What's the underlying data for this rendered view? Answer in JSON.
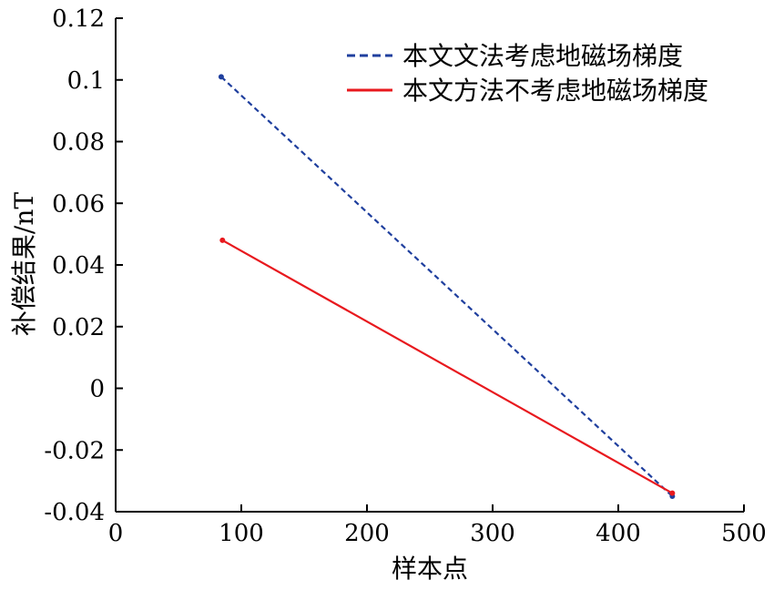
{
  "chart_data": {
    "type": "line",
    "xlabel": "样本点",
    "ylabel": "补偿结果/nT",
    "xlim": [
      0,
      500
    ],
    "ylim": [
      -0.04,
      0.12
    ],
    "x_ticks": [
      0,
      100,
      200,
      300,
      400,
      500
    ],
    "x_tick_labels": [
      "0",
      "100",
      "200",
      "300",
      "400",
      "500"
    ],
    "y_ticks": [
      -0.04,
      -0.02,
      0,
      0.02,
      0.04,
      0.06,
      0.08,
      0.1,
      0.12
    ],
    "y_tick_labels": [
      "-0.04",
      "-0.02",
      "0",
      "0.02",
      "0.04",
      "0.06",
      "0.08",
      "0.1",
      "0.12"
    ],
    "grid": false,
    "legend_position": "top-right",
    "series": [
      {
        "name": "本文文法考虑地磁场梯度",
        "color": "#1f3f9e",
        "style": "dashed",
        "sample_values": [
          {
            "x": 84,
            "y": 0.101
          },
          {
            "x": 443,
            "y": -0.035
          }
        ]
      },
      {
        "name": "本文方法不考虑地磁场梯度",
        "color": "#e8191e",
        "style": "solid",
        "sample_values": [
          {
            "x": 85,
            "y": 0.048
          },
          {
            "x": 443,
            "y": -0.034
          }
        ]
      }
    ]
  }
}
